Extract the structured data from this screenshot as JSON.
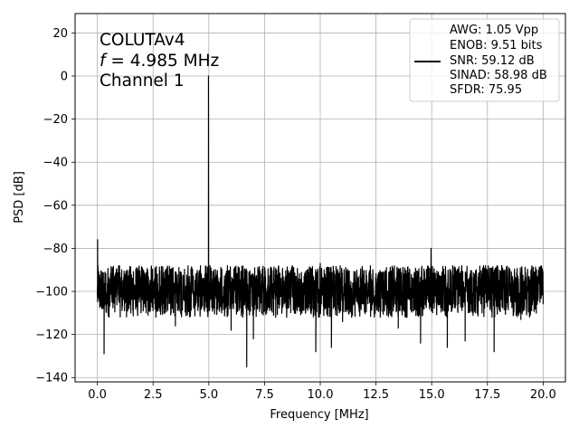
{
  "chart_data": {
    "type": "line",
    "title": "",
    "xlabel": "Frequency [MHz]",
    "ylabel": "PSD [dB]",
    "xlim": [
      -1.0,
      21.0
    ],
    "ylim": [
      -142,
      29
    ],
    "xticks": [
      0.0,
      2.5,
      5.0,
      7.5,
      10.0,
      12.5,
      15.0,
      17.5,
      20.0
    ],
    "xtick_labels": [
      "0.0",
      "2.5",
      "5.0",
      "7.5",
      "10.0",
      "12.5",
      "15.0",
      "17.5",
      "20.0"
    ],
    "yticks": [
      20,
      0,
      -20,
      -40,
      -60,
      -80,
      -100,
      -120,
      -140
    ],
    "ytick_labels": [
      "20",
      "0",
      "−20",
      "−40",
      "−60",
      "−80",
      "−100",
      "−120",
      "−140"
    ],
    "grid": true,
    "annotation": {
      "line1": "COLUTAv4",
      "line2_var": "f",
      "line2_rest": " = 4.985 MHz",
      "line3": "Channel 1"
    },
    "legend": {
      "placement": "top-right",
      "entries": [
        "AWG: 1.05 Vpp",
        "ENOB: 9.51 bits",
        "SNR: 59.12 dB",
        "SINAD: 58.98 dB",
        "SFDR: 75.95"
      ]
    },
    "series": [
      {
        "color": "#000000",
        "noise_floor_db": -100,
        "noise_range_db": [
          -112,
          -88
        ],
        "points": [
          [
            0.0,
            -98
          ],
          [
            0.01,
            -76
          ],
          [
            0.03,
            -100
          ],
          [
            0.1,
            -94
          ],
          [
            0.2,
            -108
          ],
          [
            0.3,
            -129
          ],
          [
            0.5,
            -100
          ],
          [
            1.0,
            -104
          ],
          [
            1.5,
            -110
          ],
          [
            2.0,
            -97
          ],
          [
            2.5,
            -102
          ],
          [
            3.0,
            -108
          ],
          [
            3.5,
            -116
          ],
          [
            4.0,
            -101
          ],
          [
            4.5,
            -98
          ],
          [
            4.9,
            -92
          ],
          [
            4.985,
            0
          ],
          [
            5.05,
            -88
          ],
          [
            5.5,
            -97
          ],
          [
            6.0,
            -118
          ],
          [
            6.5,
            -104
          ],
          [
            6.7,
            -135
          ],
          [
            7.0,
            -122
          ],
          [
            7.5,
            -100
          ],
          [
            8.0,
            -112
          ],
          [
            8.5,
            -98
          ],
          [
            9.0,
            -105
          ],
          [
            9.5,
            -102
          ],
          [
            9.8,
            -128
          ],
          [
            10.0,
            -87
          ],
          [
            10.5,
            -126
          ],
          [
            11.0,
            -114
          ],
          [
            11.5,
            -105
          ],
          [
            12.0,
            -101
          ],
          [
            12.5,
            -96
          ],
          [
            13.0,
            -108
          ],
          [
            13.5,
            -117
          ],
          [
            14.0,
            -99
          ],
          [
            14.5,
            -124
          ],
          [
            14.8,
            -102
          ],
          [
            14.97,
            -80
          ],
          [
            15.2,
            -105
          ],
          [
            15.5,
            -109
          ],
          [
            15.7,
            -126
          ],
          [
            16.0,
            -101
          ],
          [
            16.5,
            -123
          ],
          [
            17.0,
            -100
          ],
          [
            17.5,
            -107
          ],
          [
            17.8,
            -128
          ],
          [
            18.0,
            -99
          ],
          [
            18.5,
            -102
          ],
          [
            19.0,
            -113
          ],
          [
            19.5,
            -97
          ],
          [
            20.0,
            -100
          ]
        ]
      }
    ]
  }
}
